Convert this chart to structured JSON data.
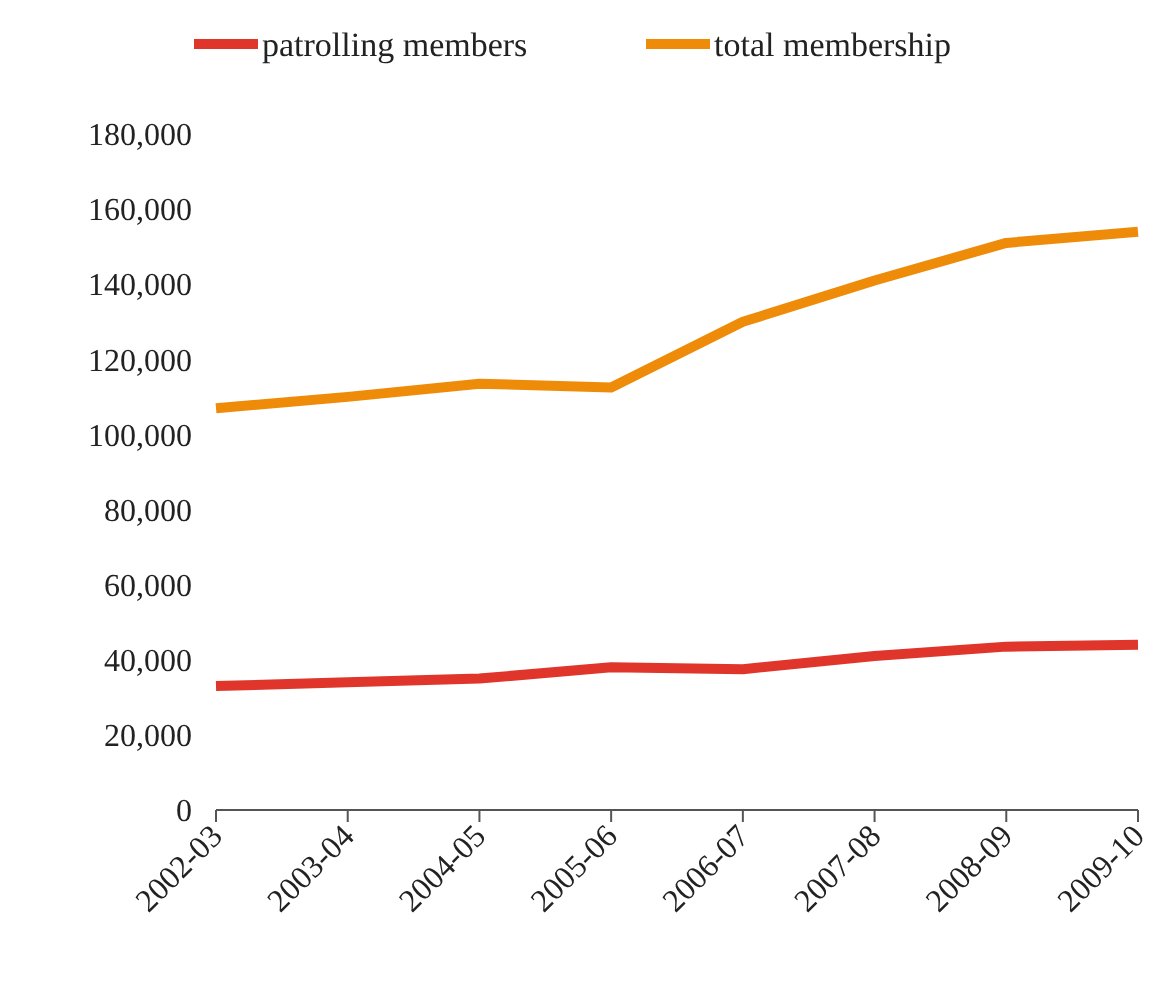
{
  "chart_data": {
    "type": "line",
    "categories": [
      "2002-03",
      "2003-04",
      "2004-05",
      "2005-06",
      "2006-07",
      "2007-08",
      "2008-09",
      "2009-10"
    ],
    "series": [
      {
        "name": "patrolling members",
        "color": "#e0352b",
        "values": [
          33000,
          34000,
          35000,
          38000,
          37500,
          41000,
          43500,
          44000
        ]
      },
      {
        "name": "total membership",
        "color": "#ee8c0a",
        "values": [
          107000,
          110000,
          113500,
          112500,
          130000,
          141000,
          151000,
          154000
        ]
      }
    ],
    "ylim": [
      0,
      180000
    ],
    "yticks": [
      {
        "value": 0,
        "label": "0"
      },
      {
        "value": 20000,
        "label": "20,000"
      },
      {
        "value": 40000,
        "label": "40,000"
      },
      {
        "value": 60000,
        "label": "60,000"
      },
      {
        "value": 80000,
        "label": "80,000"
      },
      {
        "value": 100000,
        "label": "100,000"
      },
      {
        "value": 120000,
        "label": "120,000"
      },
      {
        "value": 140000,
        "label": "140,000"
      },
      {
        "value": 160000,
        "label": "160,000"
      },
      {
        "value": 180000,
        "label": "180,000"
      }
    ],
    "legend": "top",
    "grid": false,
    "marker": "none",
    "line_style": "solid"
  }
}
